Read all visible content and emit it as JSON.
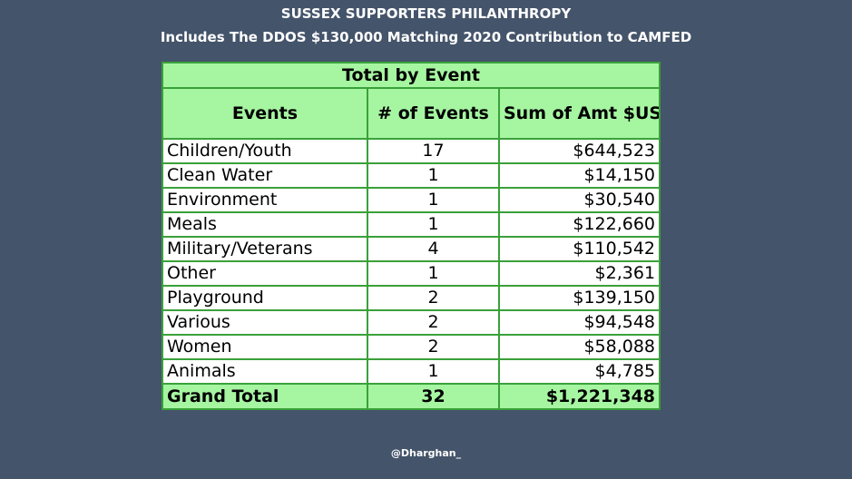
{
  "header": {
    "title": "SUSSEX SUPPORTERS PHILANTHROPY",
    "subtitle": "Includes The DDOS $130,000 Matching 2020 Contribution to CAMFED"
  },
  "chart_data": {
    "type": "table",
    "title": "Total by Event",
    "columns": [
      "Events",
      "# of Events",
      "Sum of Amt $USD"
    ],
    "rows": [
      {
        "category": "Children/Youth",
        "count": 17,
        "amount": "$644,523"
      },
      {
        "category": "Clean Water",
        "count": 1,
        "amount": "$14,150"
      },
      {
        "category": "Environment",
        "count": 1,
        "amount": "$30,540"
      },
      {
        "category": "Meals",
        "count": 1,
        "amount": "$122,660"
      },
      {
        "category": "Military/Veterans",
        "count": 4,
        "amount": "$110,542"
      },
      {
        "category": "Other",
        "count": 1,
        "amount": "$2,361"
      },
      {
        "category": "Playground",
        "count": 2,
        "amount": "$139,150"
      },
      {
        "category": "Various",
        "count": 2,
        "amount": "$94,548"
      },
      {
        "category": "Women",
        "count": 2,
        "amount": "$58,088"
      },
      {
        "category": "Animals",
        "count": 1,
        "amount": "$4,785"
      }
    ],
    "total": {
      "label": "Grand Total",
      "count": 32,
      "amount": "$1,221,348"
    }
  },
  "credit": "@Dharghan_",
  "colors": {
    "background": "#44546a",
    "header_fill": "#a6f5a1",
    "border": "#3aa13a"
  }
}
